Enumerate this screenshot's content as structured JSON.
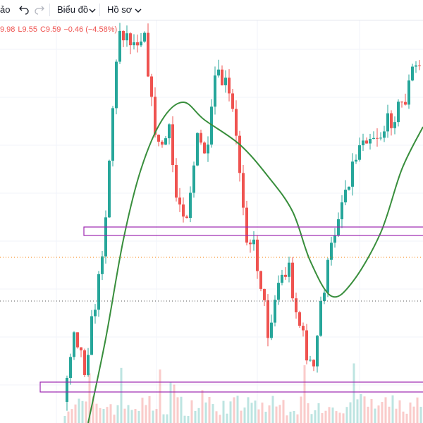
{
  "toolbar": {
    "items": [
      "ảo",
      "Biểu đồ",
      "Hồ sơ"
    ]
  },
  "legend": {
    "open": "9.98",
    "low": "L9.55",
    "close": "C9.59",
    "change": "−0.46 (−4.58%)"
  }
}
